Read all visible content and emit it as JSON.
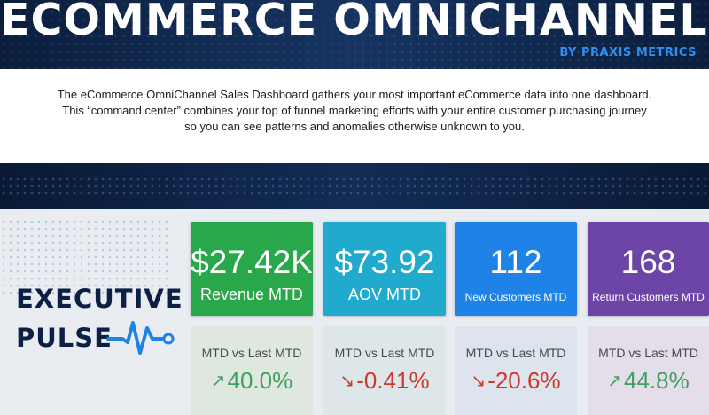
{
  "header": {
    "title": "ECOMMERCE OMNICHANNEL SALES",
    "byline": "BY PRAXIS METRICS"
  },
  "description": {
    "lines": [
      "The eCommerce OmniChannel Sales Dashboard gathers your most important eCommerce data into one dashboard.",
      "This “command center”  combines your top of funnel marketing efforts with your entire customer purchasing journey",
      "so you can see patterns and anomalies otherwise unknown to you."
    ]
  },
  "section": {
    "title_line1": "EXECUTIVE",
    "title_line2": "PULSE",
    "icon": "heartbeat-pulse-icon"
  },
  "kpis": [
    {
      "value": "$27.42K",
      "label": "Revenue MTD",
      "color": "#28a84a"
    },
    {
      "value": "$73.92",
      "label": "AOV MTD",
      "color": "#20aacd"
    },
    {
      "value": "112",
      "label": "New Customers MTD",
      "color": "#1e82e6"
    },
    {
      "value": "168",
      "label": "Return Customers MTD",
      "color": "#6c45a6"
    }
  ],
  "comparisons": [
    {
      "title": "MTD vs Last MTD",
      "value": "40.0%",
      "trend": "up",
      "icon": "trend-up-arrow-icon"
    },
    {
      "title": "MTD vs Last MTD",
      "value": "-0.41%",
      "trend": "down",
      "icon": "trend-down-arrow-icon"
    },
    {
      "title": "MTD vs Last MTD",
      "value": "-20.6%",
      "trend": "down",
      "icon": "trend-down-arrow-icon"
    },
    {
      "title": "MTD vs Last MTD",
      "value": "44.8%",
      "trend": "up",
      "icon": "trend-up-arrow-icon"
    }
  ],
  "colors": {
    "up": "#3f9f60",
    "down": "#cc3a2e",
    "navy": "#0c1f44",
    "accent": "#2f8ff0"
  }
}
